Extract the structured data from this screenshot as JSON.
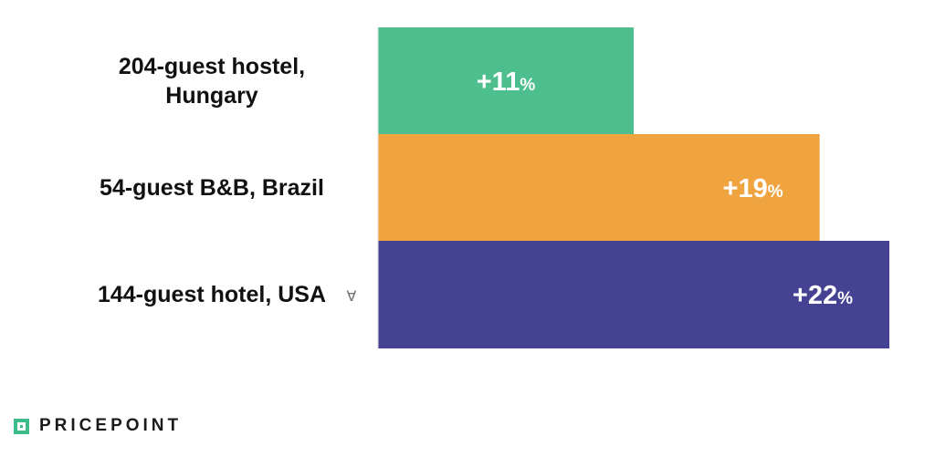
{
  "chart_data": {
    "type": "bar",
    "orientation": "horizontal",
    "categories": [
      "204-guest hostel, Hungary",
      "54-guest B&B, Brazil",
      "144-guest hotel, USA"
    ],
    "category_lines": [
      [
        "204-guest hostel,",
        "Hungary"
      ],
      [
        "54-guest B&B, Brazil"
      ],
      [
        "144-guest hotel, USA"
      ]
    ],
    "values": [
      11,
      19,
      22
    ],
    "value_labels": [
      {
        "number": "+11",
        "unit": "%"
      },
      {
        "number": "+19",
        "unit": "%"
      },
      {
        "number": "+22",
        "unit": "%"
      }
    ],
    "colors": [
      "#4dbf8f",
      "#f0a440",
      "#454193"
    ],
    "xlim": [
      0,
      22
    ],
    "grid": false,
    "legend": "none",
    "title": "",
    "xlabel": "",
    "ylabel": ""
  },
  "stray_mark": "Ɐ",
  "brand": {
    "name": "PRICEPOINT",
    "accent_color": "#3dbb8b",
    "icon": "square-logo-icon"
  }
}
